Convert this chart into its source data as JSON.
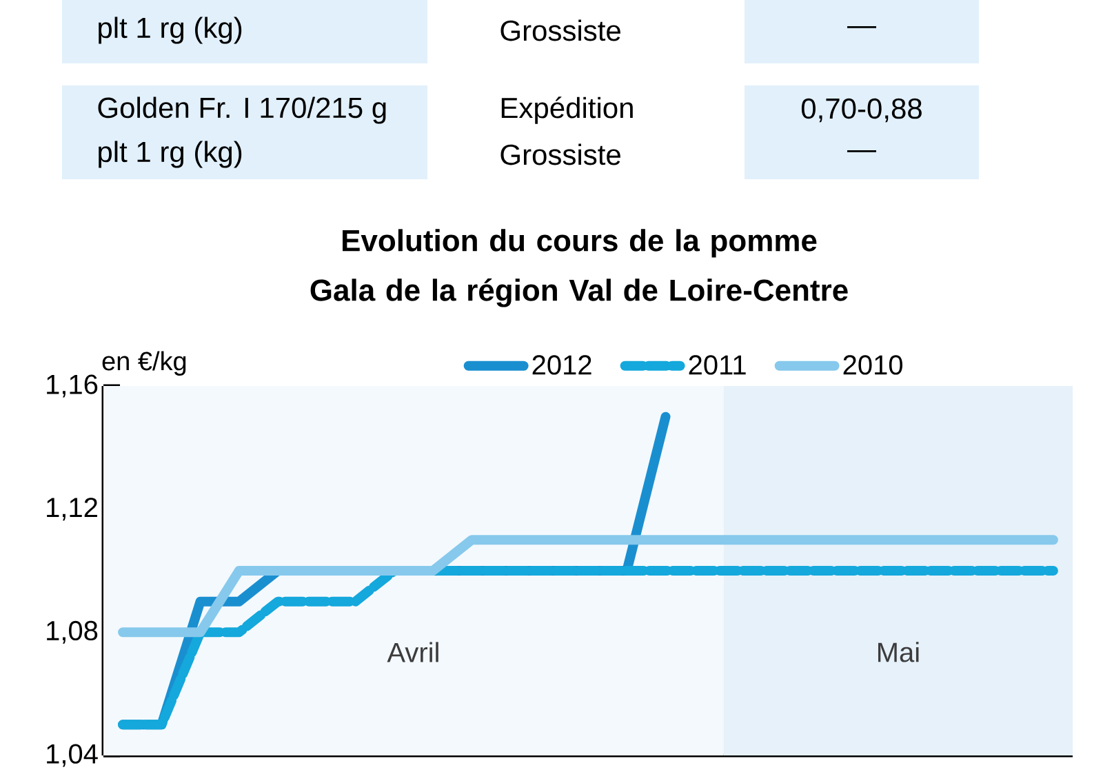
{
  "chart_data": {
    "type": "line",
    "title": "Evolution du cours de la pomme\nGala de la région Val de Loire-Centre",
    "ylabel": "en €/kg",
    "annotations": [
      "plt 1 rg (kg)",
      "Grossiste",
      "—",
      "Golden Fr. I 170/215 g",
      "plt 1 rg (kg)",
      "Expédition",
      "Grossiste",
      "0,70-0,88",
      "—",
      "Avril",
      "Mai"
    ],
    "categories": [
      null,
      null,
      null,
      null,
      null,
      null,
      null,
      null,
      null,
      null,
      null,
      null,
      null,
      null,
      null,
      null,
      null,
      null,
      null,
      null,
      null,
      null,
      null,
      null,
      null
    ],
    "ylim": [
      1.04,
      1.16
    ],
    "yticks": [
      {
        "value": 1.04,
        "label": "1,04"
      },
      {
        "value": 1.08,
        "label": "1,08"
      },
      {
        "value": 1.12,
        "label": "1,12"
      },
      {
        "value": 1.16,
        "label": "1,16"
      }
    ],
    "legend": "top",
    "series": [
      {
        "name": "2012",
        "color": "#1a8fd0",
        "line_style": "solid",
        "values": [
          1.05,
          1.05,
          1.09,
          1.09,
          1.1,
          1.1,
          1.1,
          1.1,
          1.1,
          1.1,
          1.1,
          1.1,
          1.1,
          1.1,
          1.15,
          null,
          null,
          null,
          null,
          null,
          null,
          null,
          null,
          null,
          null
        ]
      },
      {
        "name": "2011",
        "color": "#14a8dc",
        "line_style": "dashed",
        "values": [
          1.05,
          1.05,
          1.08,
          1.08,
          1.09,
          1.09,
          1.09,
          1.1,
          1.1,
          1.1,
          1.1,
          1.1,
          1.1,
          1.1,
          1.1,
          1.1,
          1.1,
          1.1,
          1.1,
          1.1,
          1.1,
          1.1,
          1.1,
          1.1,
          1.1
        ]
      },
      {
        "name": "2010",
        "color": "#86c9ec",
        "line_style": "solid",
        "values": [
          1.08,
          1.08,
          1.08,
          1.1,
          1.1,
          1.1,
          1.1,
          1.1,
          1.1,
          1.11,
          1.11,
          1.11,
          1.11,
          1.11,
          1.11,
          1.11,
          1.11,
          1.11,
          1.11,
          1.11,
          1.11,
          1.11,
          1.11,
          1.11,
          1.11
        ]
      }
    ]
  }
}
